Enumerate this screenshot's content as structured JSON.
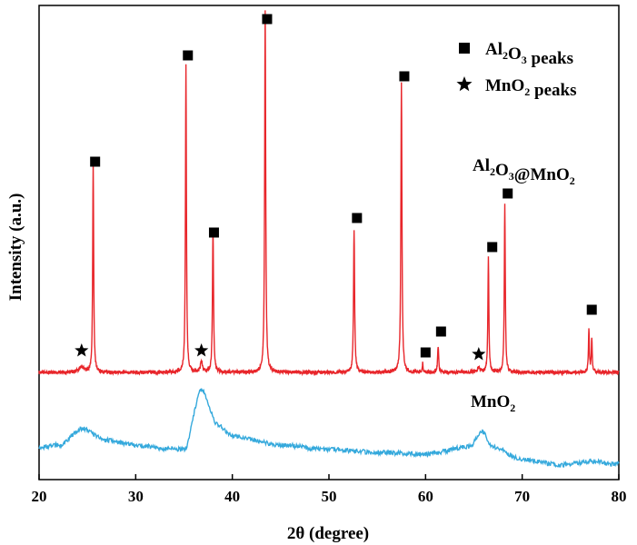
{
  "chart_data": {
    "type": "line",
    "xlabel": "2θ (degree)",
    "ylabel": "Intensity (a.u.)",
    "xlim": [
      20,
      80
    ],
    "x_ticks": [
      20,
      30,
      40,
      50,
      60,
      70,
      80
    ],
    "grid": false,
    "legend_position": "top-right",
    "legend": [
      {
        "marker": "square",
        "text_main": "Al",
        "sub1": "2",
        "mid": "O",
        "sub2": "3",
        "suffix": " peaks"
      },
      {
        "marker": "star",
        "text_main": "MnO",
        "sub1": "2",
        "mid": "",
        "sub2": "",
        "suffix": " peaks"
      }
    ],
    "series": [
      {
        "label_parts": {
          "a": "Al",
          "s1": "2",
          "b": "O",
          "s2": "3",
          "c": "@MnO",
          "s3": "2"
        },
        "color": "#e8262b",
        "baseline": 410,
        "peaks": [
          [
            24.4,
            6,
            0.6
          ],
          [
            25.6,
            230,
            0.12
          ],
          [
            35.2,
            338,
            0.12
          ],
          [
            36.8,
            12,
            0.25
          ],
          [
            38.0,
            158,
            0.13
          ],
          [
            43.4,
            397,
            0.13
          ],
          [
            52.6,
            158,
            0.13
          ],
          [
            57.5,
            318,
            0.13
          ],
          [
            59.7,
            10,
            0.1
          ],
          [
            61.3,
            28,
            0.13
          ],
          [
            65.5,
            5,
            0.4
          ],
          [
            66.5,
            126,
            0.12
          ],
          [
            68.2,
            186,
            0.12
          ],
          [
            76.9,
            48,
            0.11
          ],
          [
            77.2,
            38,
            0.11
          ]
        ],
        "al2o3_markers": [
          [
            25.8,
            178
          ],
          [
            35.4,
            61
          ],
          [
            38.1,
            256
          ],
          [
            43.6,
            21
          ],
          [
            52.9,
            240
          ],
          [
            57.8,
            84
          ],
          [
            60.0,
            388
          ],
          [
            61.6,
            365
          ],
          [
            66.9,
            272
          ],
          [
            68.5,
            213
          ],
          [
            77.2,
            341
          ]
        ],
        "mno2_markers": [
          [
            24.4,
            386
          ],
          [
            36.8,
            386
          ],
          [
            65.5,
            390
          ]
        ]
      },
      {
        "label_parts": {
          "a": "MnO",
          "s1": "2"
        },
        "color": "#35a9dc",
        "baseline_points": [
          [
            20,
            492
          ],
          [
            22,
            490
          ],
          [
            24.5,
            472
          ],
          [
            27,
            485
          ],
          [
            30,
            490
          ],
          [
            33,
            494
          ],
          [
            35,
            495
          ],
          [
            36.8,
            430
          ],
          [
            38.5,
            468
          ],
          [
            40,
            480
          ],
          [
            45,
            490
          ],
          [
            50,
            495
          ],
          [
            55,
            498
          ],
          [
            60,
            500
          ],
          [
            64.5,
            492
          ],
          [
            65.8,
            475
          ],
          [
            67,
            492
          ],
          [
            70,
            506
          ],
          [
            74,
            512
          ],
          [
            77,
            508
          ],
          [
            80,
            511
          ]
        ]
      }
    ]
  }
}
